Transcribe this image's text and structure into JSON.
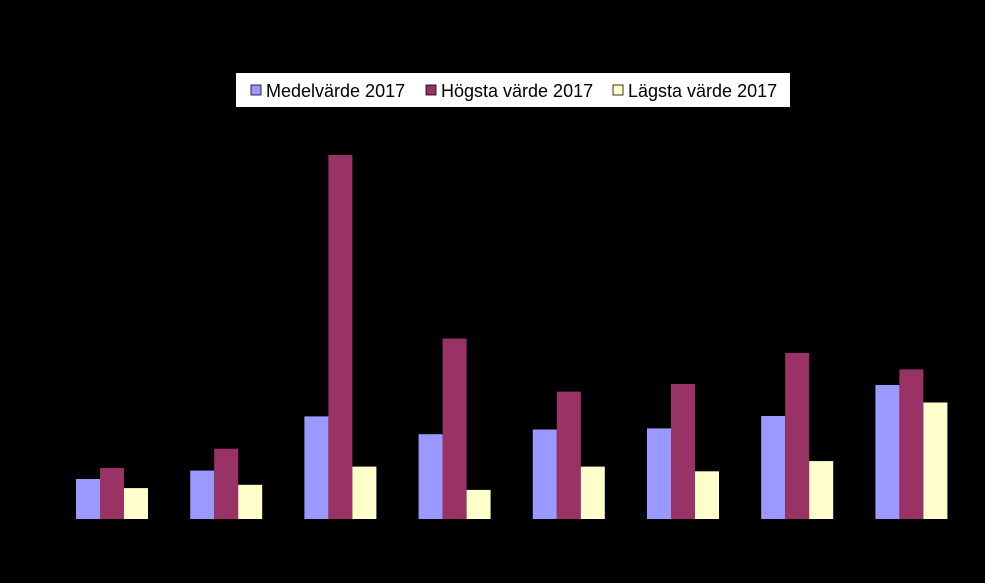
{
  "colors": {
    "background": "#000000",
    "series_medel": "#9999FF",
    "series_hogsta": "#993366",
    "series_lagsta": "#FFFFCC",
    "legend_bg": "#FFFFFF"
  },
  "chart_data": {
    "type": "bar",
    "title": "",
    "xlabel": "",
    "ylabel": "",
    "ylim": [
      0,
      100
    ],
    "legend_position": "top-center",
    "grid": false,
    "categories": [
      "",
      "",
      "",
      "",
      "",
      "",
      "",
      ""
    ],
    "series": [
      {
        "name": "Medelvärde 2017",
        "color": "#9999FF",
        "values": [
          11,
          13.3,
          28.2,
          23.3,
          24.6,
          24.9,
          28.3,
          36.8
        ]
      },
      {
        "name": "Högsta värde 2017",
        "color": "#993366",
        "values": [
          14,
          19.3,
          100,
          49.6,
          35,
          37.1,
          45.6,
          41.1
        ]
      },
      {
        "name": "Lägsta värde 2017",
        "color": "#FFFFCC",
        "values": [
          8.5,
          9.4,
          14.4,
          8,
          14.4,
          13.1,
          15.9,
          32
        ]
      }
    ]
  }
}
